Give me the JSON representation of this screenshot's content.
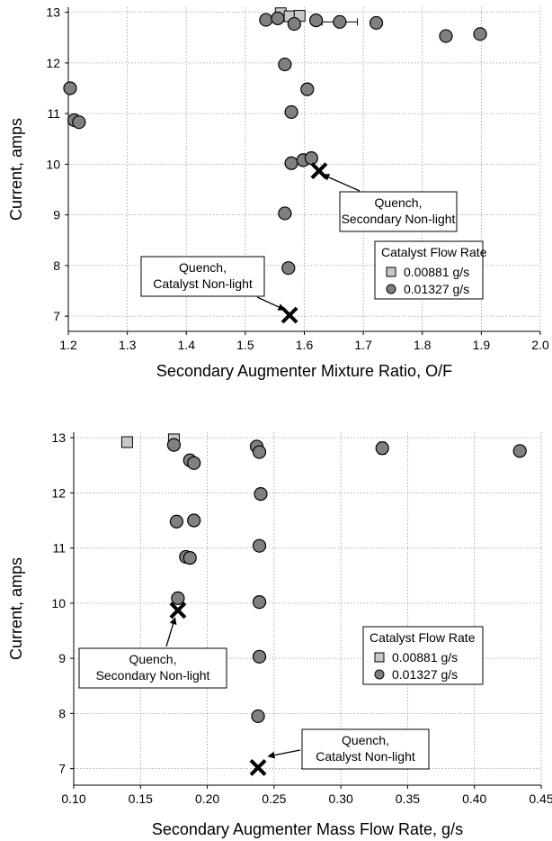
{
  "chart_data": [
    {
      "type": "scatter",
      "xlabel": "Secondary Augmenter Mixture Ratio, O/F",
      "ylabel": "Current, amps",
      "xlim": [
        1.2,
        2.0
      ],
      "ylim": [
        6.7,
        13.1
      ],
      "xticks": [
        "1.2",
        "1.3",
        "1.4",
        "1.5",
        "1.6",
        "1.7",
        "1.8",
        "1.9",
        "2.0"
      ],
      "yticks": [
        "7",
        "8",
        "9",
        "10",
        "11",
        "12",
        "13"
      ],
      "grid": true,
      "legend": {
        "title": "Catalyst Flow Rate",
        "position": "lower-right",
        "entries": [
          "0.00881 g/s",
          "0.01327 g/s"
        ]
      },
      "series": [
        {
          "name": "0.00881 g/s",
          "marker": "square",
          "color": "#c8c8c8",
          "points": [
            [
              1.56,
              12.98
            ],
            [
              1.575,
              12.92
            ],
            [
              1.592,
              12.93
            ]
          ]
        },
        {
          "name": "0.01327 g/s",
          "marker": "circle",
          "color": "#808080",
          "points": [
            [
              1.535,
              12.85
            ],
            [
              1.555,
              12.88
            ],
            [
              1.583,
              12.77
            ],
            [
              1.62,
              12.84
            ],
            [
              1.66,
              12.81
            ],
            [
              1.722,
              12.79
            ],
            [
              1.84,
              12.53
            ],
            [
              1.898,
              12.57
            ],
            [
              1.567,
              11.97
            ],
            [
              1.605,
              11.48
            ],
            [
              1.578,
              11.03
            ],
            [
              1.203,
              11.5
            ],
            [
              1.21,
              10.87
            ],
            [
              1.218,
              10.83
            ],
            [
              1.578,
              10.02
            ],
            [
              1.598,
              10.08
            ],
            [
              1.612,
              10.12
            ],
            [
              1.567,
              9.03
            ],
            [
              1.573,
              7.95
            ]
          ],
          "error_bars": [
            {
              "x": 1.66,
              "y": 12.81,
              "xmin": 1.63,
              "xmax": 1.69
            }
          ]
        }
      ],
      "markers_x": [
        [
          1.625,
          9.87
        ],
        [
          1.575,
          7.02
        ]
      ],
      "annotations": [
        {
          "lines": [
            "Quench,",
            "Secondary Non-light"
          ],
          "target": [
            1.63,
            9.8
          ]
        },
        {
          "lines": [
            "Quench,",
            "Catalyst Non-light"
          ],
          "target": [
            1.568,
            7.12
          ]
        }
      ]
    },
    {
      "type": "scatter",
      "xlabel": "Secondary Augmenter Mass Flow Rate, g/s",
      "ylabel": "Current, amps",
      "xlim": [
        0.1,
        0.45
      ],
      "ylim": [
        6.7,
        13.1
      ],
      "xticks": [
        "0.10",
        "0.15",
        "0.20",
        "0.25",
        "0.30",
        "0.35",
        "0.40",
        "0.45"
      ],
      "yticks": [
        "7",
        "8",
        "9",
        "10",
        "11",
        "12",
        "13"
      ],
      "grid": true,
      "legend": {
        "title": "Catalyst Flow Rate",
        "position": "right",
        "entries": [
          "0.00881 g/s",
          "0.01327 g/s"
        ]
      },
      "series": [
        {
          "name": "0.00881 g/s",
          "marker": "square",
          "color": "#c8c8c8",
          "points": [
            [
              0.14,
              12.92
            ],
            [
              0.175,
              12.97
            ]
          ]
        },
        {
          "name": "0.01327 g/s",
          "marker": "circle",
          "color": "#808080",
          "points": [
            [
              0.175,
              12.87
            ],
            [
              0.187,
              12.59
            ],
            [
              0.19,
              12.54
            ],
            [
              0.237,
              12.84
            ],
            [
              0.239,
              12.74
            ],
            [
              0.24,
              11.98
            ],
            [
              0.239,
              11.04
            ],
            [
              0.239,
              10.02
            ],
            [
              0.239,
              9.03
            ],
            [
              0.238,
              7.95
            ],
            [
              0.177,
              11.48
            ],
            [
              0.19,
              11.5
            ],
            [
              0.184,
              10.84
            ],
            [
              0.187,
              10.82
            ],
            [
              0.178,
              10.09
            ],
            [
              0.331,
              12.81
            ],
            [
              0.434,
              12.76
            ]
          ],
          "error_bars": [
            {
              "x": 0.331,
              "y": 12.81,
              "xmin": 0.327,
              "xmax": 0.335,
              "ymin": 12.7,
              "ymax": 12.92
            }
          ]
        }
      ],
      "markers_x": [
        [
          0.178,
          9.87
        ],
        [
          0.238,
          7.02
        ]
      ],
      "annotations": [
        {
          "lines": [
            "Quench,",
            "Secondary Non-light"
          ],
          "target": [
            0.176,
            9.75
          ]
        },
        {
          "lines": [
            "Quench,",
            "Catalyst Non-light"
          ],
          "target": [
            0.245,
            7.22
          ]
        }
      ]
    }
  ]
}
